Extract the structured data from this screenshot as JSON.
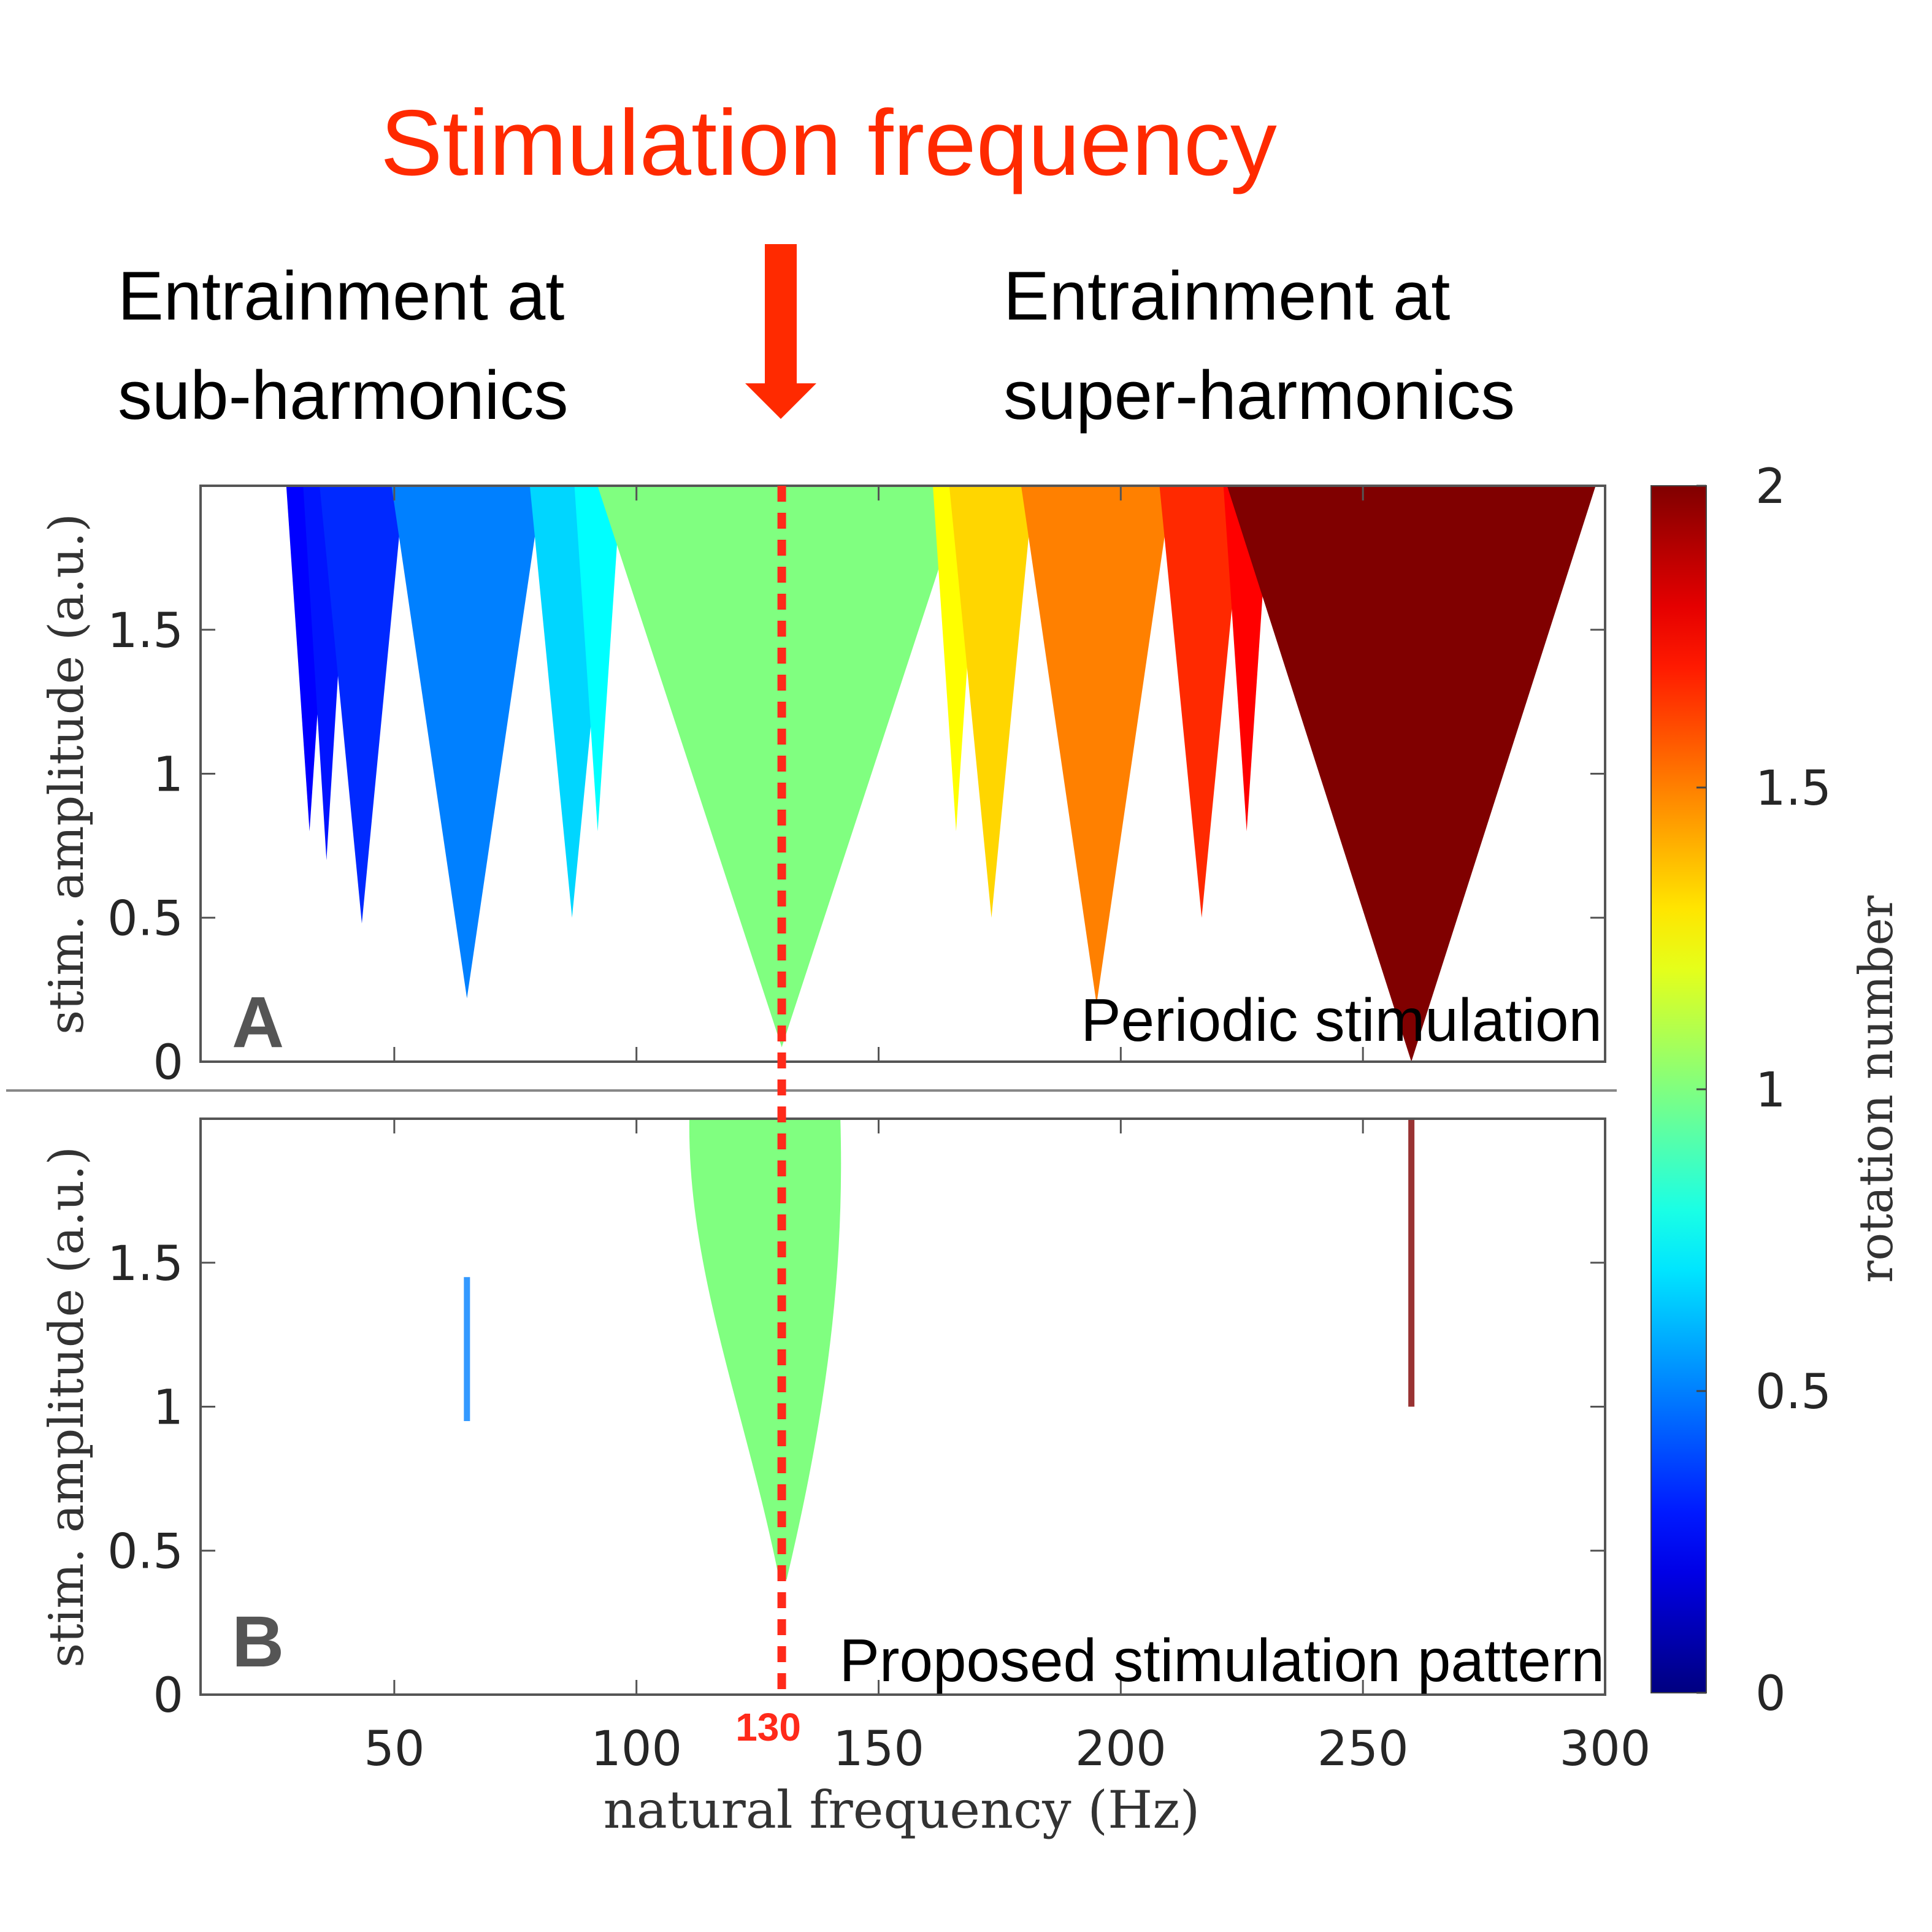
{
  "header": {
    "title": "Stimulation frequency",
    "title_color": "#ff2a00",
    "left_note": [
      "Entrainment at",
      "sub-harmonics"
    ],
    "right_note": [
      "Entrainment at",
      "super-harmonics"
    ],
    "arrow_icon": "down-arrow"
  },
  "chart_data": [
    {
      "type": "heatmap",
      "panel_label": "A",
      "annotation": "Periodic stimulation",
      "xlabel": "natural frequency (Hz)",
      "ylabel": "stim. amplitude (a.u.)",
      "xlim": [
        10,
        300
      ],
      "ylim": [
        0,
        2
      ],
      "xticks": [
        50,
        100,
        150,
        200,
        250,
        300
      ],
      "yticks": [
        0,
        0.5,
        1,
        1.5
      ],
      "ytick_labels": [
        "0",
        "0.5",
        "1",
        "1.5"
      ],
      "stim_frequency_line": 130,
      "tongues": [
        {
          "center": 32.5,
          "tip": 0.8,
          "half_width_at_top": 5,
          "rotation": 0.25
        },
        {
          "center": 36,
          "tip": 0.7,
          "half_width_at_top": 5,
          "rotation": 0.29
        },
        {
          "center": 43.3,
          "tip": 0.48,
          "half_width_at_top": 9,
          "rotation": 0.33
        },
        {
          "center": 65,
          "tip": 0.22,
          "half_width_at_top": 16,
          "rotation": 0.5
        },
        {
          "center": 86.7,
          "tip": 0.5,
          "half_width_at_top": 9,
          "rotation": 0.67
        },
        {
          "center": 92,
          "tip": 0.8,
          "half_width_at_top": 5,
          "rotation": 0.75
        },
        {
          "center": 130,
          "tip": 0.05,
          "half_width_at_top": 39,
          "rotation": 1
        },
        {
          "center": 166,
          "tip": 0.8,
          "half_width_at_top": 5,
          "rotation": 1.25
        },
        {
          "center": 173.3,
          "tip": 0.5,
          "half_width_at_top": 9,
          "rotation": 1.33
        },
        {
          "center": 195,
          "tip": 0.2,
          "half_width_at_top": 16,
          "rotation": 1.5
        },
        {
          "center": 216.7,
          "tip": 0.5,
          "half_width_at_top": 9,
          "rotation": 1.67
        },
        {
          "center": 226,
          "tip": 0.8,
          "half_width_at_top": 5,
          "rotation": 1.75
        },
        {
          "center": 260,
          "tip": 0.0,
          "half_width_at_top": 39,
          "rotation": 2
        }
      ]
    },
    {
      "type": "heatmap",
      "panel_label": "B",
      "annotation": "Proposed stimulation pattern",
      "xlabel": "natural frequency (Hz)",
      "ylabel": "stim. amplitude (a.u.)",
      "xlim": [
        10,
        300
      ],
      "ylim": [
        0,
        2
      ],
      "xticks": [
        50,
        100,
        150,
        200,
        250,
        300
      ],
      "xtick_labels": [
        "50",
        "100",
        "150",
        "200",
        "250",
        "300"
      ],
      "yticks": [
        0,
        0.5,
        1,
        1.5
      ],
      "ytick_labels": [
        "0",
        "0.5",
        "1",
        "1.5"
      ],
      "stim_frequency_line": 130,
      "stim_frequency_label": "130",
      "regions": [
        {
          "rotation": 1,
          "freq_range_at_top": [
            111,
            142
          ],
          "tip_freq": 130,
          "tip_amplitude": 0.4
        },
        {
          "rotation": 0.5,
          "freq": 65,
          "amplitude_range": [
            0.95,
            1.45
          ]
        },
        {
          "rotation": 2,
          "freq": 260,
          "amplitude_range": [
            1.0,
            2.0
          ]
        }
      ]
    }
  ],
  "colorbar": {
    "label": "rotation number",
    "colormap": "jet",
    "range": [
      0,
      2
    ],
    "ticks": [
      "0",
      "0.5",
      "1",
      "1.5",
      "2"
    ]
  },
  "colors": {
    "stim_line": "#ff2a1a",
    "axis": "#555555",
    "tick_text": "#262626"
  }
}
